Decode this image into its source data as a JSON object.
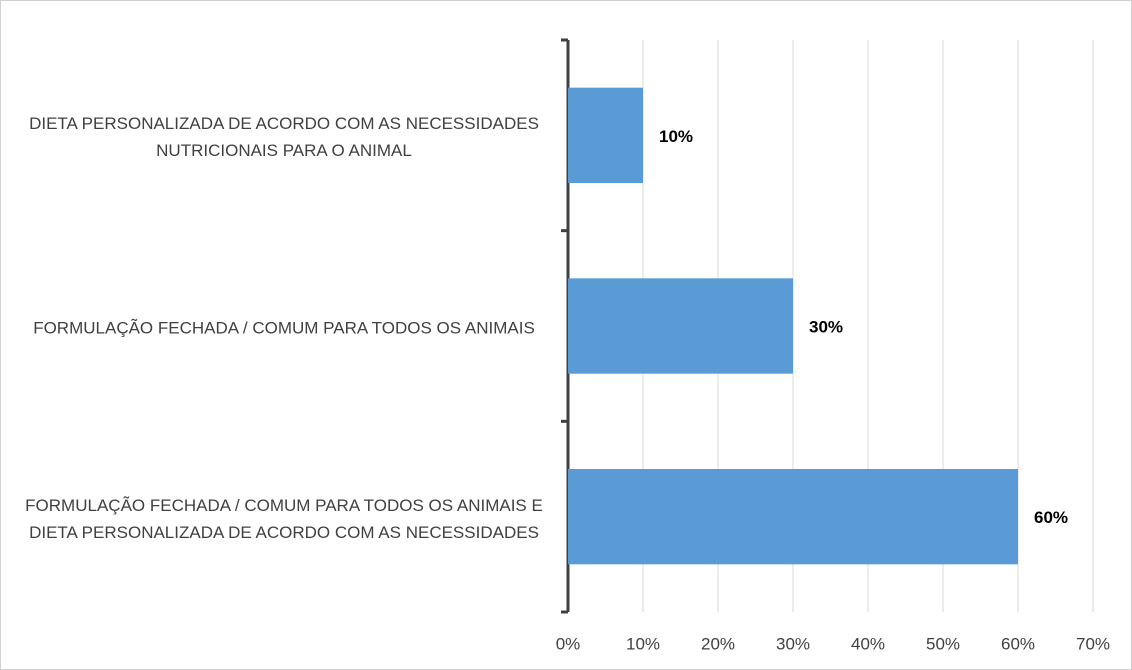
{
  "chart_data": {
    "type": "bar",
    "orientation": "horizontal",
    "categories": [
      "DIETA PERSONALIZADA DE ACORDO COM AS NECESSIDADES NUTRICIONAIS PARA O ANIMAL",
      "FORMULAÇÃO FECHADA / COMUM PARA TODOS OS ANIMAIS",
      "FORMULAÇÃO FECHADA / COMUM PARA TODOS OS ANIMAIS E DIETA PERSONALIZADA DE ACORDO COM AS NECESSIDADES"
    ],
    "values": [
      10,
      30,
      60
    ],
    "value_labels": [
      "10%",
      "30%",
      "60%"
    ],
    "color": "#5b9bd5",
    "xlim": [
      0,
      70
    ],
    "xticks": [
      {
        "value": 0,
        "label": "0%"
      },
      {
        "value": 10,
        "label": "10%"
      },
      {
        "value": 20,
        "label": "20%"
      },
      {
        "value": 30,
        "label": "30%"
      },
      {
        "value": 40,
        "label": "40%"
      },
      {
        "value": 50,
        "label": "50%"
      },
      {
        "value": 60,
        "label": "60%"
      },
      {
        "value": 70,
        "label": "70%"
      }
    ],
    "grid": true
  }
}
